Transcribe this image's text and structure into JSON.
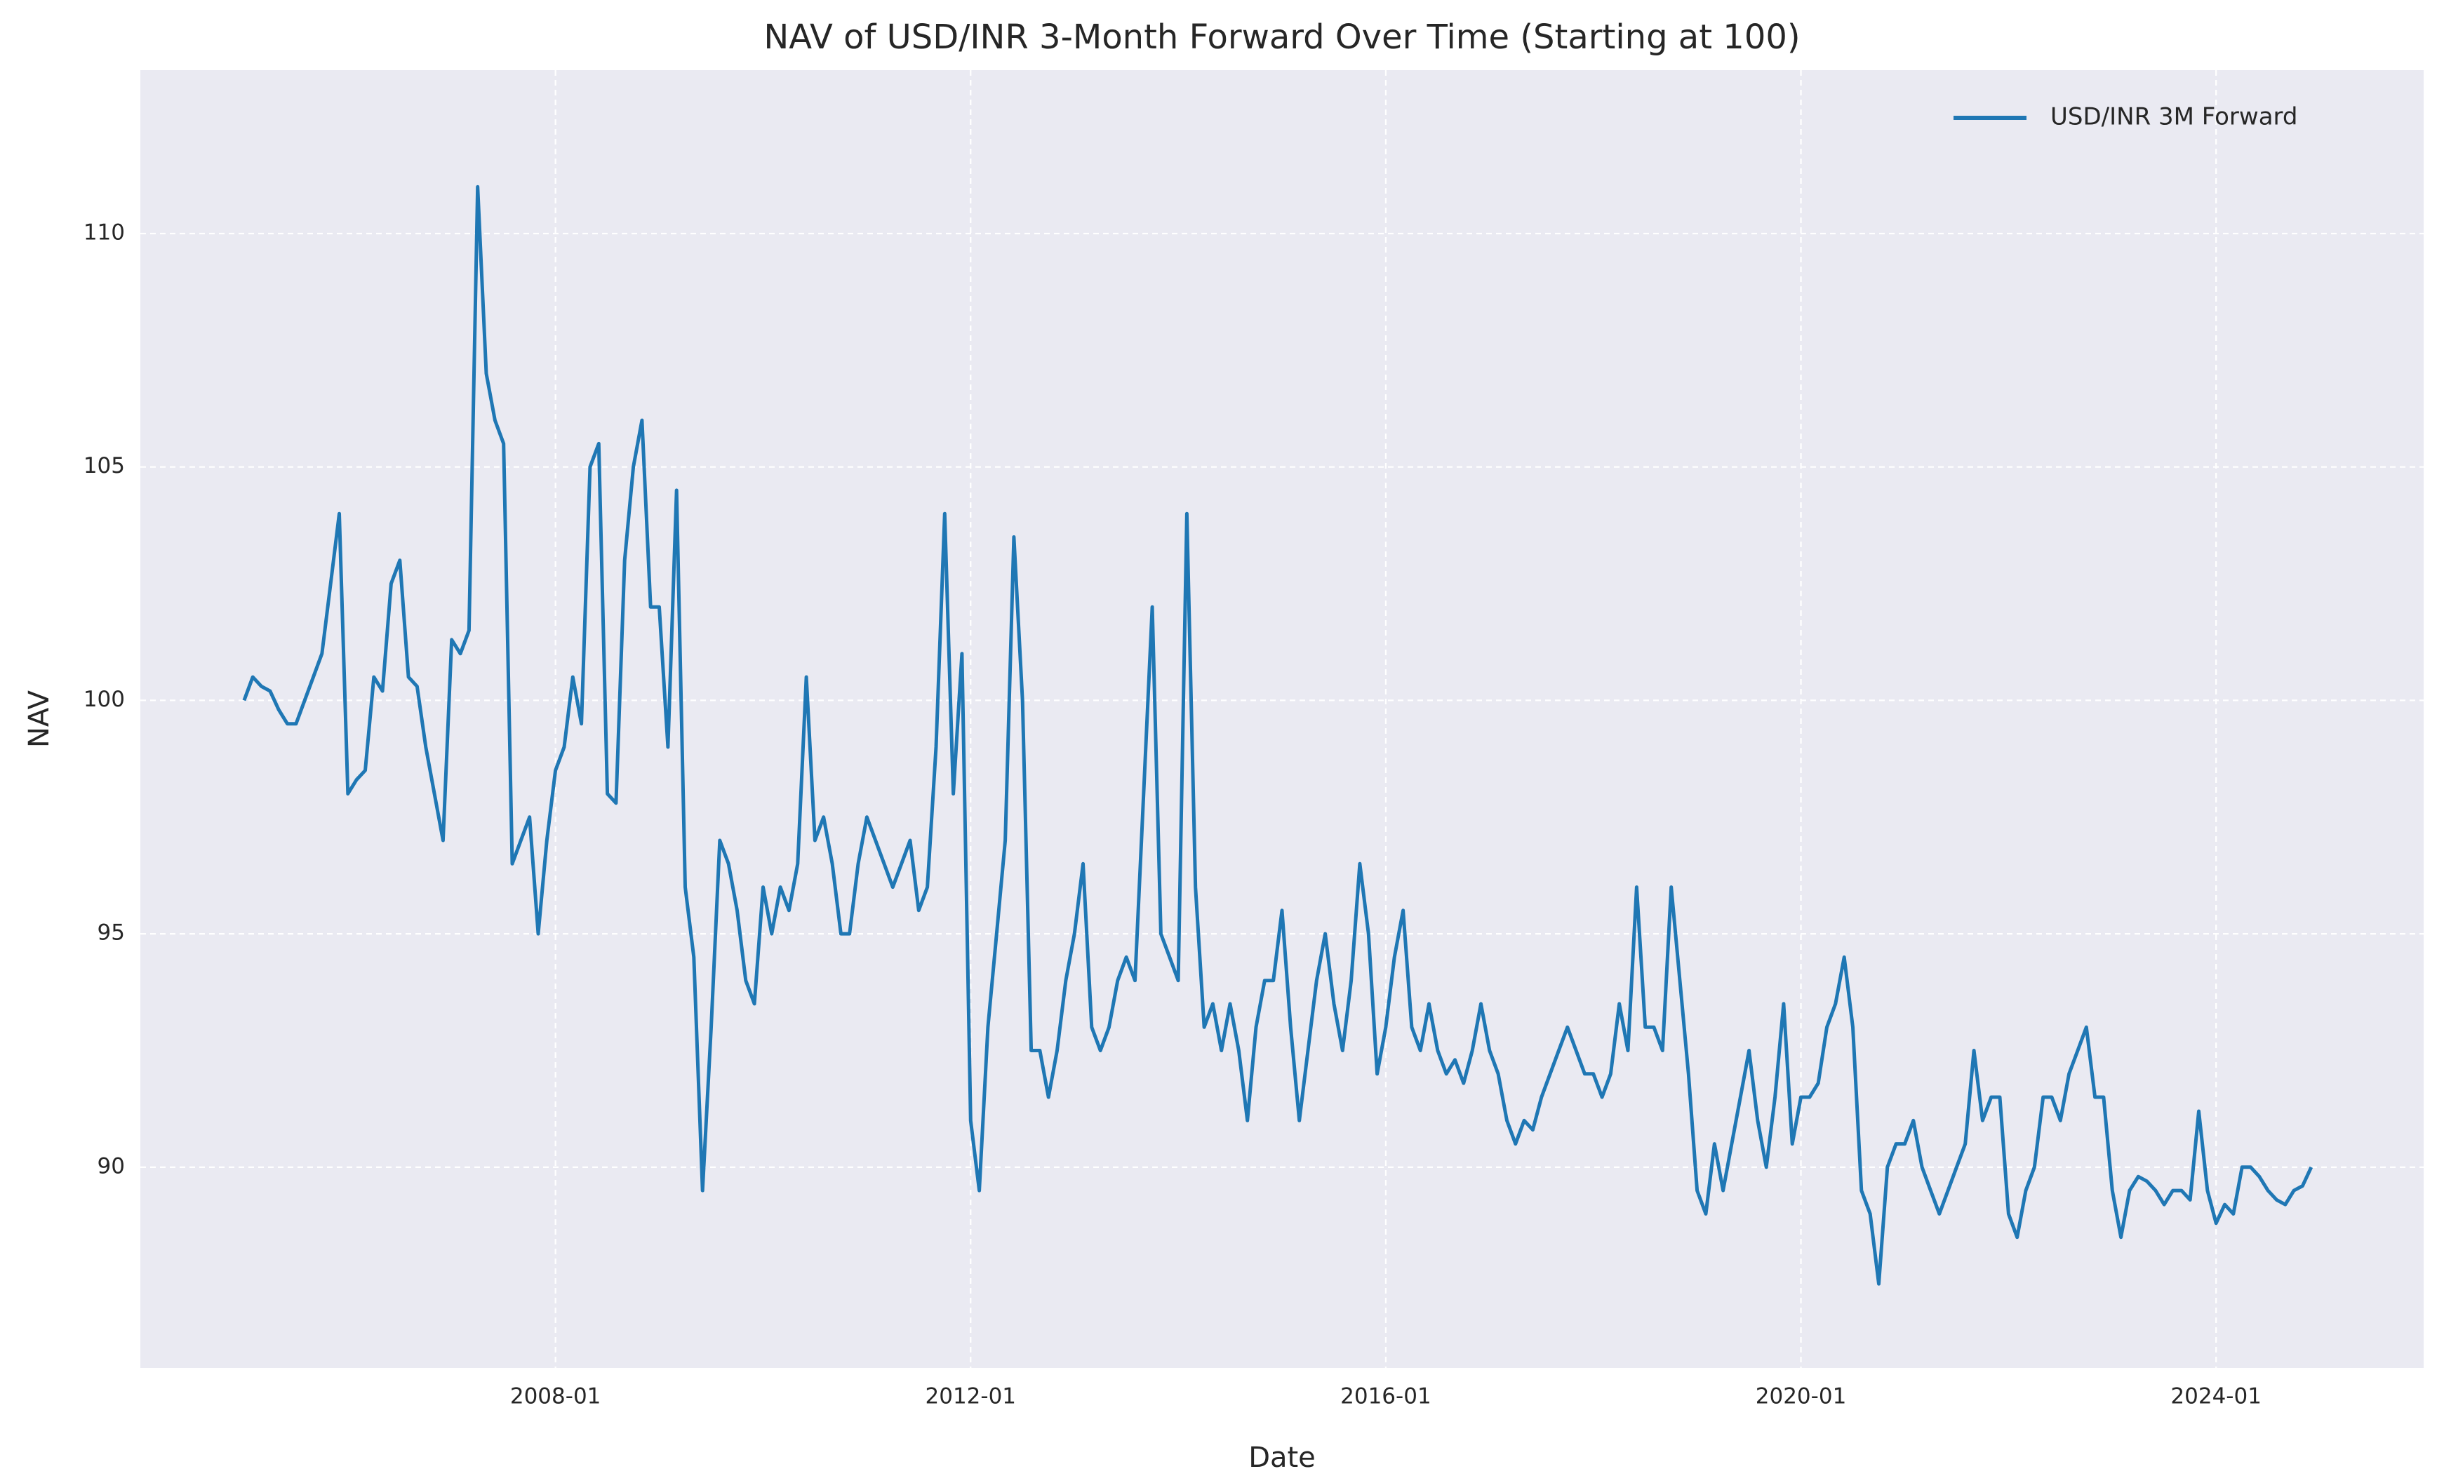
{
  "chart_data": {
    "type": "line",
    "title": "NAV of USD/INR 3-Month Forward Over Time (Starting at 100)",
    "x_label": "Date",
    "y_label": "NAV",
    "x": [
      "2005-01",
      "2005-02",
      "2005-03",
      "2005-04",
      "2005-05",
      "2005-06",
      "2005-07",
      "2005-08",
      "2005-09",
      "2005-10",
      "2005-11",
      "2005-12",
      "2006-01",
      "2006-02",
      "2006-03",
      "2006-04",
      "2006-05",
      "2006-06",
      "2006-07",
      "2006-08",
      "2006-09",
      "2006-10",
      "2006-11",
      "2006-12",
      "2007-01",
      "2007-02",
      "2007-03",
      "2007-04",
      "2007-05",
      "2007-06",
      "2007-07",
      "2007-08",
      "2007-09",
      "2007-10",
      "2007-11",
      "2007-12",
      "2008-01",
      "2008-02",
      "2008-03",
      "2008-04",
      "2008-05",
      "2008-06",
      "2008-07",
      "2008-08",
      "2008-09",
      "2008-10",
      "2008-11",
      "2008-12",
      "2009-01",
      "2009-02",
      "2009-03",
      "2009-04",
      "2009-05",
      "2009-06",
      "2009-07",
      "2009-08",
      "2009-09",
      "2009-10",
      "2009-11",
      "2009-12",
      "2010-01",
      "2010-02",
      "2010-03",
      "2010-04",
      "2010-05",
      "2010-06",
      "2010-07",
      "2010-08",
      "2010-09",
      "2010-10",
      "2010-11",
      "2010-12",
      "2011-01",
      "2011-02",
      "2011-03",
      "2011-04",
      "2011-05",
      "2011-06",
      "2011-07",
      "2011-08",
      "2011-09",
      "2011-10",
      "2011-11",
      "2011-12",
      "2012-01",
      "2012-02",
      "2012-03",
      "2012-04",
      "2012-05",
      "2012-06",
      "2012-07",
      "2012-08",
      "2012-09",
      "2012-10",
      "2012-11",
      "2012-12",
      "2013-01",
      "2013-02",
      "2013-03",
      "2013-04",
      "2013-05",
      "2013-06",
      "2013-07",
      "2013-08",
      "2013-09",
      "2013-10",
      "2013-11",
      "2013-12",
      "2014-01",
      "2014-02",
      "2014-03",
      "2014-04",
      "2014-05",
      "2014-06",
      "2014-07",
      "2014-08",
      "2014-09",
      "2014-10",
      "2014-11",
      "2014-12",
      "2015-01",
      "2015-02",
      "2015-03",
      "2015-04",
      "2015-05",
      "2015-06",
      "2015-07",
      "2015-08",
      "2015-09",
      "2015-10",
      "2015-11",
      "2015-12",
      "2016-01",
      "2016-02",
      "2016-03",
      "2016-04",
      "2016-05",
      "2016-06",
      "2016-07",
      "2016-08",
      "2016-09",
      "2016-10",
      "2016-11",
      "2016-12",
      "2017-01",
      "2017-02",
      "2017-03",
      "2017-04",
      "2017-05",
      "2017-06",
      "2017-07",
      "2017-08",
      "2017-09",
      "2017-10",
      "2017-11",
      "2017-12",
      "2018-01",
      "2018-02",
      "2018-03",
      "2018-04",
      "2018-05",
      "2018-06",
      "2018-07",
      "2018-08",
      "2018-09",
      "2018-10",
      "2018-11",
      "2018-12",
      "2019-01",
      "2019-02",
      "2019-03",
      "2019-04",
      "2019-05",
      "2019-06",
      "2019-07",
      "2019-08",
      "2019-09",
      "2019-10",
      "2019-11",
      "2019-12",
      "2020-01",
      "2020-02",
      "2020-03",
      "2020-04",
      "2020-05",
      "2020-06",
      "2020-07",
      "2020-08",
      "2020-09",
      "2020-10",
      "2020-11",
      "2020-12",
      "2021-01",
      "2021-02",
      "2021-03",
      "2021-04",
      "2021-05",
      "2021-06",
      "2021-07",
      "2021-08",
      "2021-09",
      "2021-10",
      "2021-11",
      "2021-12",
      "2022-01",
      "2022-02",
      "2022-03",
      "2022-04",
      "2022-05",
      "2022-06",
      "2022-07",
      "2022-08",
      "2022-09",
      "2022-10",
      "2022-11",
      "2022-12",
      "2023-01",
      "2023-02",
      "2023-03",
      "2023-04",
      "2023-05",
      "2023-06",
      "2023-07",
      "2023-08",
      "2023-09",
      "2023-10",
      "2023-11",
      "2023-12",
      "2024-01",
      "2024-02",
      "2024-03",
      "2024-04",
      "2024-05",
      "2024-06",
      "2024-07",
      "2024-08",
      "2024-09",
      "2024-10",
      "2024-11",
      "2024-12"
    ],
    "series": [
      {
        "name": "USD/INR 3M Forward",
        "color": "#1f77b4",
        "values": [
          100,
          100.5,
          100.3,
          100.2,
          99.8,
          99.5,
          99.5,
          100,
          100.5,
          101,
          102.5,
          104,
          98,
          98.3,
          98.5,
          100.5,
          100.2,
          102.5,
          103,
          100.5,
          100.3,
          99,
          98,
          97,
          101.3,
          101,
          101.5,
          111,
          107,
          106,
          105.5,
          96.5,
          97,
          97.5,
          95,
          97,
          98.5,
          99,
          100.5,
          99.5,
          105,
          105.5,
          98,
          97.8,
          103,
          105,
          106,
          102,
          102,
          99,
          104.5,
          96,
          94.5,
          89.5,
          93,
          97,
          96.5,
          95.5,
          94,
          93.5,
          96,
          95,
          96,
          95.5,
          96.5,
          100.5,
          97,
          97.5,
          96.5,
          95,
          95,
          96.5,
          97.5,
          97,
          96.5,
          96,
          96.5,
          97,
          95.5,
          96,
          99,
          104,
          98,
          101,
          91,
          89.5,
          93,
          95,
          97,
          103.5,
          100,
          92.5,
          92.5,
          91.5,
          92.5,
          94,
          95,
          96.5,
          93,
          92.5,
          93,
          94,
          94.5,
          94,
          98,
          102,
          95,
          94.5,
          94,
          104,
          96,
          93,
          93.5,
          92.5,
          93.5,
          92.5,
          91,
          93,
          94,
          94,
          95.5,
          93,
          91,
          92.5,
          94,
          95,
          93.5,
          92.5,
          94,
          96.5,
          95,
          92,
          93,
          94.5,
          95.5,
          93,
          92.5,
          93.5,
          92.5,
          92,
          92.3,
          91.8,
          92.5,
          93.5,
          92.5,
          92,
          91,
          90.5,
          91,
          90.8,
          91.5,
          92,
          92.5,
          93,
          92.5,
          92,
          92,
          91.5,
          92,
          93.5,
          92.5,
          96,
          93,
          93,
          92.5,
          96,
          94,
          92,
          89.5,
          89,
          90.5,
          89.5,
          90.5,
          91.5,
          92.5,
          91,
          90,
          91.5,
          93.5,
          90.5,
          91.5,
          91.5,
          91.8,
          93,
          93.5,
          94.5,
          93,
          89.5,
          89,
          87.5,
          90,
          90.5,
          90.5,
          91,
          90,
          89.5,
          89,
          89.5,
          90,
          90.5,
          92.5,
          91,
          91.5,
          91.5,
          89,
          88.5,
          89.5,
          90,
          91.5,
          91.5,
          91,
          92,
          92.5,
          93,
          91.5,
          91.5,
          89.5,
          88.5,
          89.5,
          89.8,
          89.7,
          89.5,
          89.2,
          89.5,
          89.5,
          89.3,
          91.2,
          89.5,
          88.8,
          89.2,
          89,
          90,
          90,
          89.8,
          89.5,
          89.3,
          89.2,
          89.5,
          89.6,
          90
        ]
      }
    ],
    "xlim": [
      "2004-01",
      "2026-01"
    ],
    "xticks": [
      "2008-01",
      "2012-01",
      "2016-01",
      "2020-01",
      "2024-01"
    ],
    "ylim": [
      85.7,
      113.5
    ],
    "yticks": [
      90,
      95,
      100,
      105,
      110
    ],
    "grid": true,
    "legend": "upper right"
  }
}
